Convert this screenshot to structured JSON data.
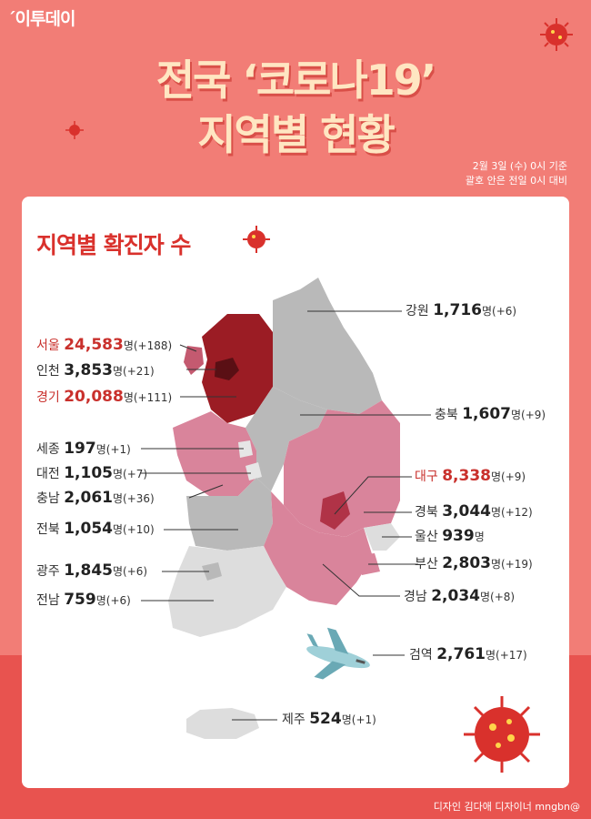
{
  "brand": "이투데이",
  "title_line1": "전국 ‘코로나19’",
  "title_line2": "지역별 현황",
  "basis_line1": "2월 3일 (수) 0시 기준",
  "basis_line2": "괄호 안은 전일 0시 대비",
  "card_title": "지역별 확진자 수",
  "unit": "명",
  "regions": [
    {
      "name": "강원",
      "count": "1,716",
      "delta": "(+6)"
    },
    {
      "name": "서울",
      "count": "24,583",
      "delta": "(+188)"
    },
    {
      "name": "인천",
      "count": "3,853",
      "delta": "(+21)"
    },
    {
      "name": "경기",
      "count": "20,088",
      "delta": "(+111)"
    },
    {
      "name": "충북",
      "count": "1,607",
      "delta": "(+9)"
    },
    {
      "name": "세종",
      "count": "197",
      "delta": "(+1)"
    },
    {
      "name": "대전",
      "count": "1,105",
      "delta": "(+7)"
    },
    {
      "name": "대구",
      "count": "8,338",
      "delta": "(+9)"
    },
    {
      "name": "충남",
      "count": "2,061",
      "delta": "(+36)"
    },
    {
      "name": "경북",
      "count": "3,044",
      "delta": "(+12)"
    },
    {
      "name": "전북",
      "count": "1,054",
      "delta": "(+10)"
    },
    {
      "name": "울산",
      "count": "939",
      "delta": ""
    },
    {
      "name": "부산",
      "count": "2,803",
      "delta": "(+19)"
    },
    {
      "name": "광주",
      "count": "1,845",
      "delta": "(+6)"
    },
    {
      "name": "경남",
      "count": "2,034",
      "delta": "(+8)"
    },
    {
      "name": "전남",
      "count": "759",
      "delta": "(+6)"
    },
    {
      "name": "검역",
      "count": "2,761",
      "delta": "(+17)"
    },
    {
      "name": "제주",
      "count": "524",
      "delta": "(+1)"
    }
  ],
  "credit": "디자인 김다애 디자이너 mngbn@",
  "colors": {
    "background": "#f27d76",
    "title": "#ffe6c2",
    "highlight": "#c9302c",
    "dark_region": "#9b1c24",
    "mid_region": "#d9849b",
    "light_region": "#b7b7b7",
    "pale_region": "#dddddd"
  },
  "icons": [
    "virus-icon",
    "airplane-icon",
    "korea-map"
  ]
}
